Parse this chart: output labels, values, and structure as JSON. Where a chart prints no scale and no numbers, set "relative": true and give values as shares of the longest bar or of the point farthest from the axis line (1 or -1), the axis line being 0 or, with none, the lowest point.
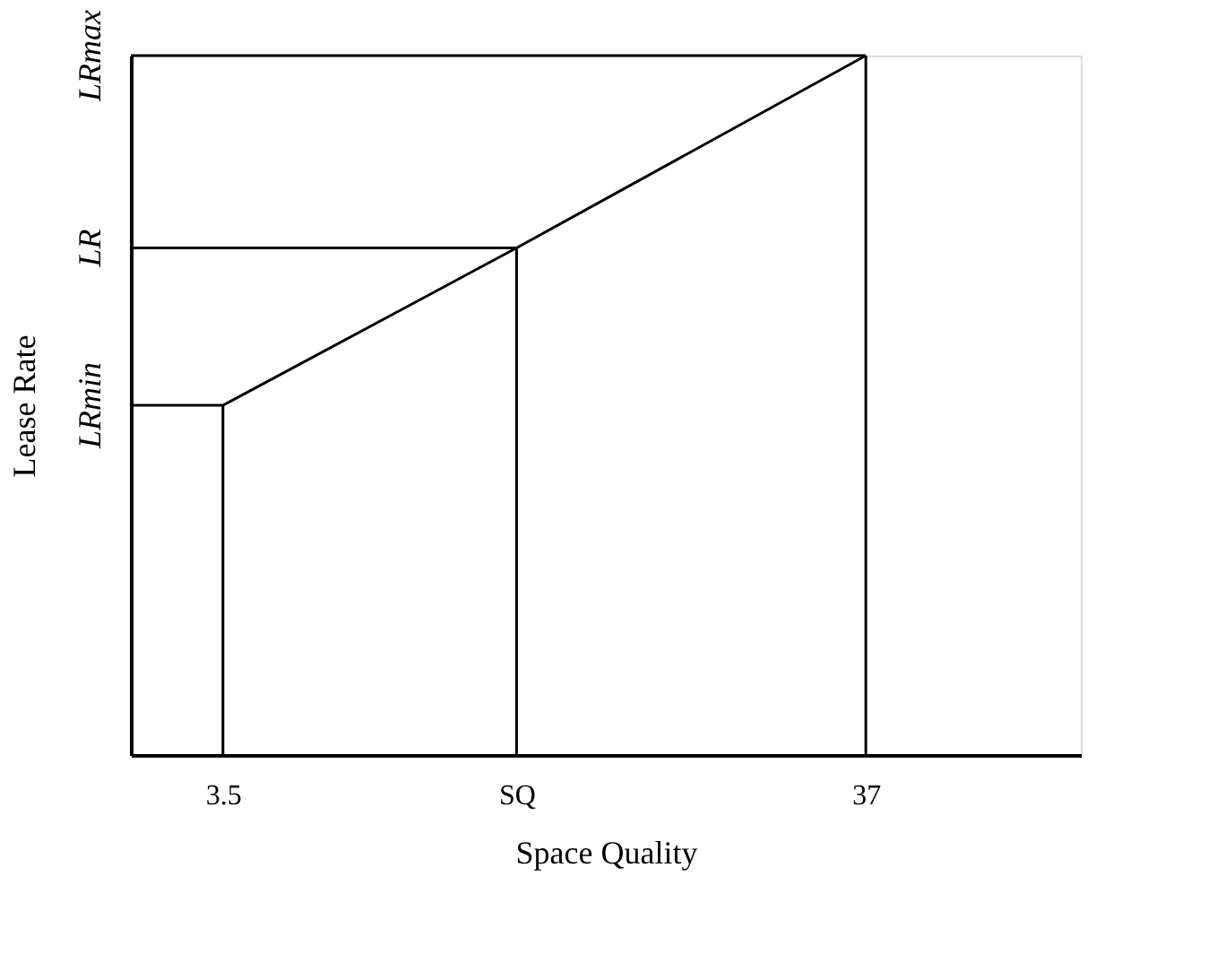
{
  "chart_data": {
    "type": "line",
    "relative": true,
    "xlabel": "Space Quality",
    "ylabel": "Lease Rate",
    "xlim": [
      -1.3,
      48.2
    ],
    "xticks": [
      3.5,
      {
        "value": 18.8,
        "label": "SQ"
      },
      37
    ],
    "grid": false,
    "marker": "none",
    "line_style": "solid",
    "series": [
      {
        "color": "#000000",
        "x": [
          3.5,
          18.8,
          37
        ],
        "values": [
          0.5,
          0.725,
          1
        ]
      },
      {
        "color": "#000000",
        "x": [
          -1.3,
          37
        ],
        "values": [
          1,
          1
        ]
      },
      {
        "color": "#000000",
        "x": [
          -1.3,
          18.8
        ],
        "values": [
          0.725,
          0.725
        ]
      },
      {
        "color": "#000000",
        "x": [
          -1.3,
          3.5
        ],
        "values": [
          0.5,
          0.5
        ]
      },
      {
        "color": "#000000",
        "x": [
          3.5,
          3.5
        ],
        "values": [
          0,
          0.5
        ]
      },
      {
        "color": "#000000",
        "x": [
          18.8,
          18.8
        ],
        "values": [
          0,
          0.725
        ]
      },
      {
        "color": "#000000",
        "x": [
          37,
          37
        ],
        "values": [
          0,
          1
        ]
      }
    ],
    "annotations": [
      "LRmax",
      "LR",
      "LRmin"
    ]
  }
}
